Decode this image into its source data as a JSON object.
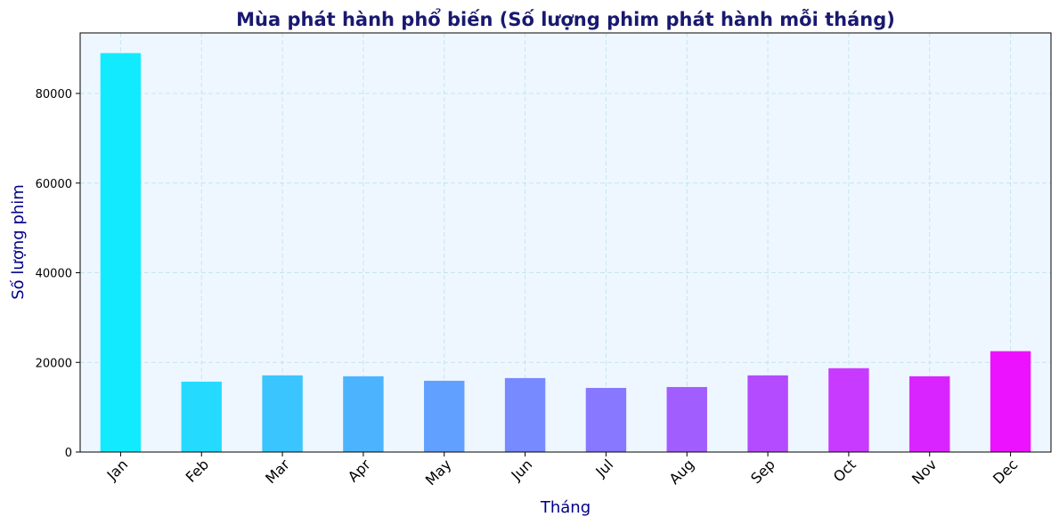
{
  "chart_data": {
    "type": "bar",
    "title": "Mùa phát hành phổ biến (Số lượng phim phát hành mỗi tháng)",
    "xlabel": "Tháng",
    "ylabel": "Số lượng phim",
    "categories": [
      "Jan",
      "Feb",
      "Mar",
      "Apr",
      "May",
      "Jun",
      "Jul",
      "Aug",
      "Sep",
      "Oct",
      "Nov",
      "Dec"
    ],
    "values": [
      89000,
      15700,
      17100,
      16900,
      15900,
      16500,
      14300,
      14500,
      17100,
      18700,
      16900,
      22500
    ],
    "yticks": [
      0,
      20000,
      40000,
      60000,
      80000
    ],
    "ylim": [
      0,
      93500
    ],
    "grid": true,
    "colors": {
      "plot_background": "#eef7ff",
      "grid": "#add8e6",
      "title": "#191970",
      "axis_label": "#00008b",
      "bars": [
        "#12ebff",
        "#24dbff",
        "#3ac5ff",
        "#4cb3ff",
        "#62a0ff",
        "#778aff",
        "#8877ff",
        "#a25dff",
        "#b44bff",
        "#c83aff",
        "#da24ff",
        "#ec12ff"
      ]
    }
  }
}
